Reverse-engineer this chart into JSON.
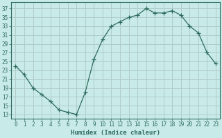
{
  "x": [
    0,
    1,
    2,
    3,
    4,
    5,
    6,
    7,
    8,
    9,
    10,
    11,
    12,
    13,
    14,
    15,
    16,
    17,
    18,
    19,
    20,
    21,
    22,
    23
  ],
  "y": [
    24,
    22,
    19,
    17.5,
    16,
    14,
    13.5,
    13,
    18,
    25.5,
    30,
    33,
    34,
    35,
    35.5,
    37,
    36,
    36,
    36.5,
    35.5,
    33,
    31.5,
    27,
    24.5
  ],
  "line_color": "#2e6b5e",
  "marker": "+",
  "marker_size": 4,
  "bg_color": "#c8eae8",
  "grid_color": "#b0ccc8",
  "xlabel": "Humidex (Indice chaleur)",
  "xlim": [
    -0.5,
    23.5
  ],
  "ylim": [
    12,
    38.5
  ],
  "yticks": [
    13,
    15,
    17,
    19,
    21,
    23,
    25,
    27,
    29,
    31,
    33,
    35,
    37
  ],
  "xticks": [
    0,
    1,
    2,
    3,
    4,
    5,
    6,
    7,
    8,
    9,
    10,
    11,
    12,
    13,
    14,
    15,
    16,
    17,
    18,
    19,
    20,
    21,
    22,
    23
  ],
  "label_fontsize": 6.5,
  "tick_fontsize": 5.5
}
